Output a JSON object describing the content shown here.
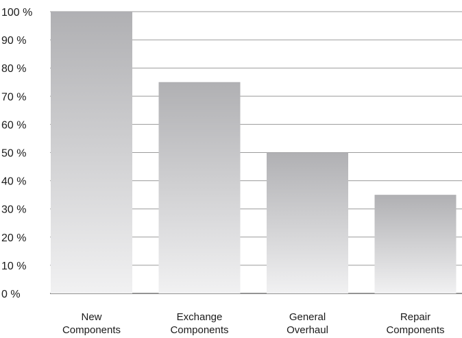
{
  "chart_data": {
    "type": "bar",
    "categories": [
      [
        "New",
        "Components"
      ],
      [
        "Exchange",
        "Components"
      ],
      [
        "General",
        "Overhaul"
      ],
      [
        "Repair",
        "Components"
      ]
    ],
    "values": [
      100,
      75,
      50,
      35
    ],
    "yticks": [
      "0 %",
      "10 %",
      "20 %",
      "30 %",
      "40 %",
      "50 %",
      "60 %",
      "70 %",
      "80 %",
      "90 %",
      "100 %"
    ],
    "ylim": [
      0,
      100
    ],
    "grid": true,
    "legend": "none",
    "colors": {
      "bar_top": "#b0b0b3",
      "bar_bottom": "#f1f1f2",
      "grid": "#9a9a9a",
      "text": "#1a1a1a"
    }
  }
}
